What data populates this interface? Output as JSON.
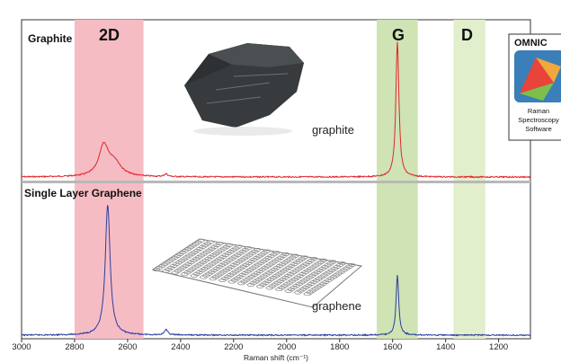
{
  "chart_data": {
    "type": "line",
    "title": "",
    "xlabel": "Raman shift (cm⁻¹)",
    "ylabel": "",
    "xlim": [
      3000,
      1080
    ],
    "x_reversed": true,
    "xticks": [
      "3000",
      "2800",
      "2600",
      "2400",
      "2200",
      "2000",
      "1800",
      "1600",
      "1400",
      "1200"
    ],
    "grid": false,
    "bands": [
      {
        "label": "2D",
        "x_range": [
          2800,
          2540
        ],
        "color": "#f6bcc4"
      },
      {
        "label": "G",
        "x_range": [
          1660,
          1505
        ],
        "color": "#cfe3b5"
      },
      {
        "label": "D",
        "x_range": [
          1370,
          1250
        ],
        "color": "#e2efcc"
      }
    ],
    "panels": [
      {
        "name": "Graphite",
        "inset_label": "graphite",
        "color": "#e0262b",
        "peaks": [
          {
            "x": 2690,
            "y": 0.22,
            "note": "2D"
          },
          {
            "x": 2455,
            "y": 0.02
          },
          {
            "x": 1582,
            "y": 1.0,
            "note": "G"
          }
        ]
      },
      {
        "name": "Single Layer Graphene",
        "inset_label": "graphene",
        "color": "#2b3f9e",
        "peaks": [
          {
            "x": 2675,
            "y": 1.0,
            "note": "2D"
          },
          {
            "x": 2455,
            "y": 0.04
          },
          {
            "x": 1582,
            "y": 0.46,
            "note": "G"
          }
        ]
      }
    ]
  },
  "logo": {
    "title": "OMNIC",
    "line1": "Raman",
    "line2": "Spectroscopy",
    "line3": "Software"
  }
}
